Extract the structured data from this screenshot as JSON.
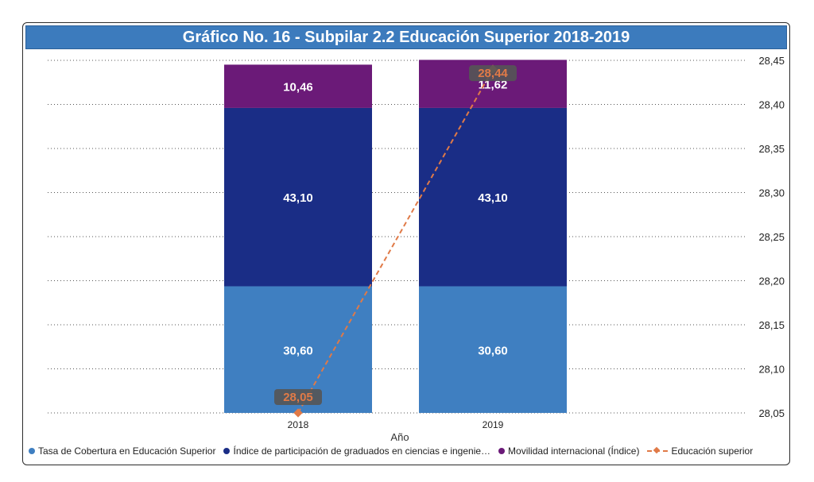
{
  "chart_data": {
    "type": "bar",
    "title": "Gráfico No. 16 - Subpilar 2.2 Educación Superior 2018-2019",
    "xlabel": "Año",
    "categories": [
      "2018",
      "2019"
    ],
    "series": [
      {
        "name": "Tasa de Cobertura en Educación Superior",
        "kind": "bar",
        "values": [
          30.6,
          30.6
        ],
        "labels": [
          "30,60",
          "30,60"
        ],
        "color": "#3f7fc1"
      },
      {
        "name": "Índice de participación de graduados en ciencias e ingenie…",
        "kind": "bar",
        "values": [
          43.1,
          43.1
        ],
        "labels": [
          "43,10",
          "43,10"
        ],
        "color": "#1a2d86"
      },
      {
        "name": "Movilidad internacional (Índice)",
        "kind": "bar",
        "values": [
          10.46,
          11.62
        ],
        "labels": [
          "10,46",
          "11,62"
        ],
        "color": "#6b1a78"
      },
      {
        "name": "Educación superior",
        "kind": "line",
        "values": [
          28.05,
          28.44
        ],
        "labels": [
          "28,05",
          "28,44"
        ],
        "color": "#e07a47"
      }
    ],
    "y_right": {
      "min": 28.05,
      "max": 28.45,
      "ticks": [
        "28,05",
        "28,10",
        "28,15",
        "28,20",
        "28,25",
        "28,30",
        "28,35",
        "28,40",
        "28,45"
      ]
    },
    "bar_axis_max": 85.2,
    "grid": "dotted",
    "legend": "bottom"
  }
}
